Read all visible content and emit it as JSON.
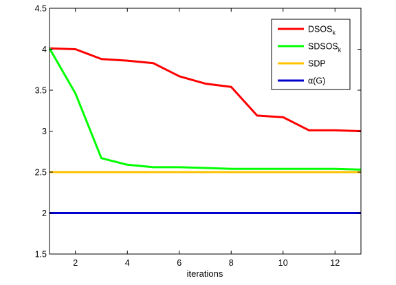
{
  "chart_data": {
    "type": "line",
    "title": "",
    "xlabel": "iterations",
    "ylabel": "",
    "xlim": [
      1,
      13
    ],
    "ylim": [
      1.5,
      4.5
    ],
    "x_ticks": [
      2,
      4,
      6,
      8,
      10,
      12
    ],
    "y_ticks": [
      1.5,
      2,
      2.5,
      3,
      3.5,
      4,
      4.5
    ],
    "grid": false,
    "legend_position": "top-right",
    "x": [
      1,
      2,
      3,
      4,
      5,
      6,
      7,
      8,
      9,
      10,
      11,
      12,
      13
    ],
    "series": [
      {
        "name": "DSOS",
        "subscript": "k",
        "color": "#ff0000",
        "values": [
          4.01,
          4.0,
          3.88,
          3.86,
          3.83,
          3.67,
          3.58,
          3.54,
          3.19,
          3.17,
          3.01,
          3.01,
          3.0
        ]
      },
      {
        "name": "SDSOS",
        "subscript": "k",
        "color": "#00ff00",
        "values": [
          4.01,
          3.46,
          2.67,
          2.59,
          2.56,
          2.56,
          2.55,
          2.54,
          2.54,
          2.54,
          2.54,
          2.54,
          2.53
        ]
      },
      {
        "name": "SDP",
        "subscript": "",
        "color": "#ffc000",
        "values": [
          2.5,
          2.5,
          2.5,
          2.5,
          2.5,
          2.5,
          2.5,
          2.5,
          2.5,
          2.5,
          2.5,
          2.5,
          2.5
        ]
      },
      {
        "name": "α(G)",
        "subscript": "",
        "color": "#0000cc",
        "values": [
          2.0,
          2.0,
          2.0,
          2.0,
          2.0,
          2.0,
          2.0,
          2.0,
          2.0,
          2.0,
          2.0,
          2.0,
          2.0
        ]
      }
    ]
  }
}
